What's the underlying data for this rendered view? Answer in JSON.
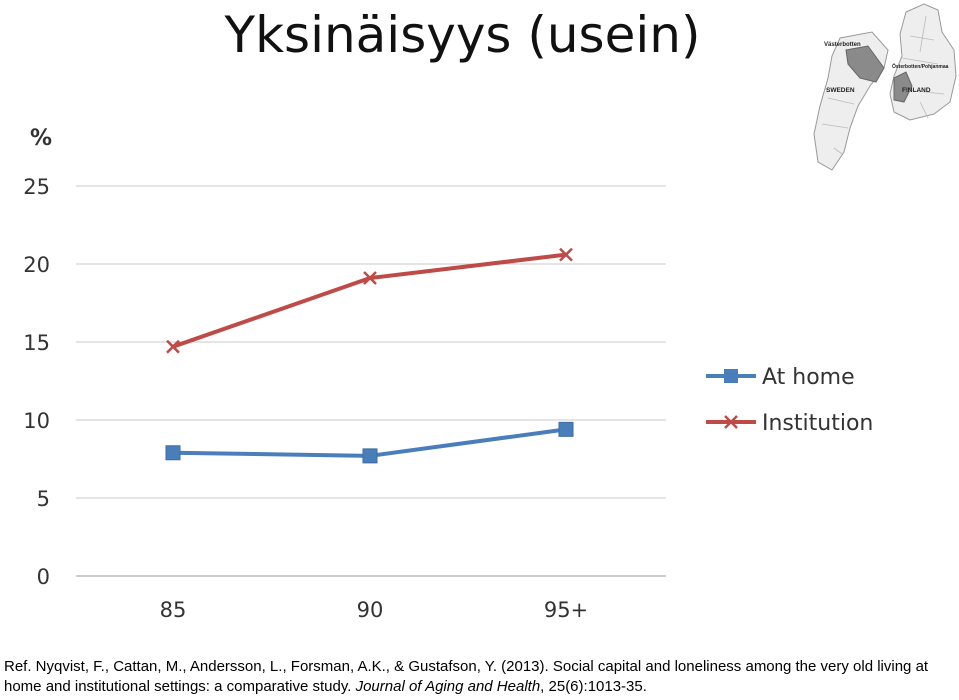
{
  "title": "Yksinäisyys (usein)",
  "map": {
    "labels": {
      "vasterbotten": "Västerbotten",
      "osterbotten": "Österbotten/Pohjanmaa",
      "sweden": "SWEDEN",
      "finland": "FINLAND"
    },
    "colors": {
      "land": "#eeeeee",
      "border": "#999999",
      "highlight": "#8a8a8a"
    }
  },
  "chart_data": {
    "type": "line",
    "ylabel": "%",
    "categories": [
      "85",
      "90",
      "95+"
    ],
    "ylim": [
      0,
      25
    ],
    "yticks": [
      "0",
      "5",
      "10",
      "15",
      "20",
      "25"
    ],
    "grid": true,
    "legend": "right",
    "series": [
      {
        "name": "At home",
        "values": [
          7.9,
          7.7,
          9.4
        ],
        "color": "#4a7ebb",
        "marker": "square"
      },
      {
        "name": "Institution",
        "values": [
          14.7,
          19.1,
          20.6
        ],
        "color": "#be4b48",
        "marker": "x"
      }
    ]
  },
  "citation": {
    "pre": "Ref. Nyqvist, F., Cattan, M., Andersson, L., Forsman, A.K., & Gustafson, Y. (2013). Social capital and loneliness among the very old living at home and institutional settings: a comparative study.",
    "journal": "Journal of Aging and Health",
    "post": ", 25(6):1013-35."
  }
}
